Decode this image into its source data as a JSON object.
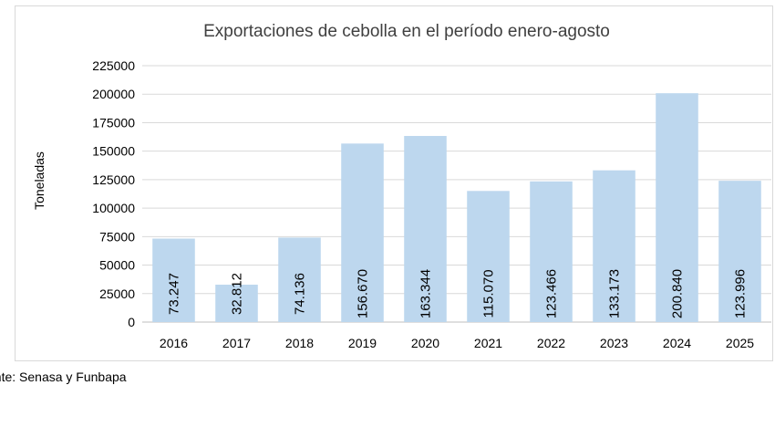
{
  "source_text": "ente: Senasa y Funbapa",
  "chart_data": {
    "type": "bar",
    "title": "Exportaciones de cebolla en el período enero-agosto",
    "xlabel": "",
    "ylabel": "Toneladas",
    "categories": [
      "2016",
      "2017",
      "2018",
      "2019",
      "2020",
      "2021",
      "2022",
      "2023",
      "2024",
      "2025"
    ],
    "values": [
      73247,
      32812,
      74136,
      156670,
      163344,
      115070,
      123466,
      133173,
      200840,
      123996
    ],
    "data_labels": [
      "73.247",
      "32.812",
      "74.136",
      "156.670",
      "163.344",
      "115.070",
      "123.466",
      "133.173",
      "200.840",
      "123.996"
    ],
    "ylim": [
      0,
      225000
    ],
    "yticks": [
      "0",
      "25000",
      "50000",
      "75000",
      "100000",
      "125000",
      "150000",
      "175000",
      "200000",
      "225000"
    ],
    "grid": true,
    "legend": "none",
    "bar_color": "#bdd7ee",
    "grid_color": "#d9d9d9"
  }
}
